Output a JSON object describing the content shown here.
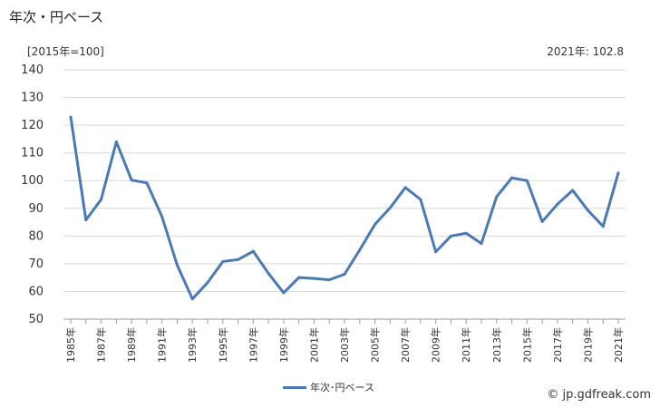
{
  "header": {
    "title": "年次・円ベース",
    "unit": "[2015年=100]",
    "latest": "2021年: 102.8"
  },
  "legend": {
    "label": "年次･円ベース"
  },
  "footer": {
    "credit": "© jp.gdfreak.com"
  },
  "colors": {
    "line": "#4a7ab5",
    "grid": "#d9d9d9"
  },
  "chart_data": {
    "type": "line",
    "x": [
      1985,
      1986,
      1987,
      1988,
      1989,
      1990,
      1991,
      1992,
      1993,
      1994,
      1995,
      1996,
      1997,
      1998,
      1999,
      2000,
      2001,
      2002,
      2003,
      2004,
      2005,
      2006,
      2007,
      2008,
      2009,
      2010,
      2011,
      2012,
      2013,
      2014,
      2015,
      2016,
      2017,
      2018,
      2019,
      2020,
      2021
    ],
    "series": [
      {
        "name": "年次･円ベース",
        "values": [
          123,
          85.8,
          93.2,
          114,
          100.2,
          99.2,
          87,
          69.5,
          57.3,
          63.2,
          70.8,
          71.5,
          74.5,
          66.5,
          59.5,
          65,
          64.7,
          64.2,
          66.2,
          75,
          84.2,
          90.2,
          97.5,
          93.2,
          74.3,
          80,
          81,
          77.3,
          94.2,
          101,
          100,
          85.2,
          91.5,
          96.5,
          89.3,
          83.5,
          102.8
        ]
      }
    ],
    "ylim": [
      50,
      140
    ],
    "yticks": [
      50,
      60,
      70,
      80,
      90,
      100,
      110,
      120,
      130,
      140
    ],
    "xtick_labels": [
      "1985年",
      "1987年",
      "1989年",
      "1991年",
      "1993年",
      "1995年",
      "1997年",
      "1999年",
      "2001年",
      "2003年",
      "2005年",
      "2007年",
      "2009年",
      "2011年",
      "2013年",
      "2015年",
      "2017年",
      "2019年",
      "2021年"
    ],
    "grid": true,
    "legend_position": "bottom-center"
  }
}
